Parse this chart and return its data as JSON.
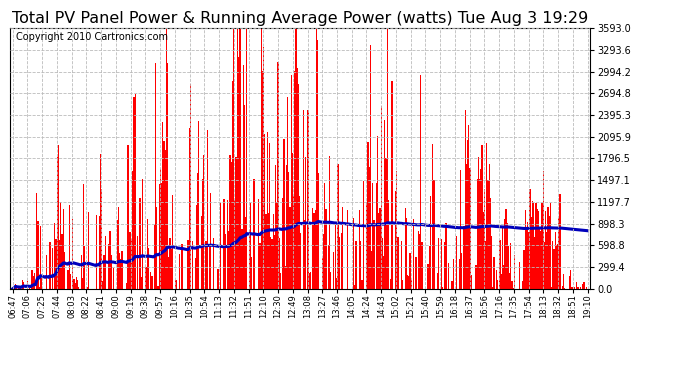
{
  "title": "Total PV Panel Power & Running Average Power (watts) Tue Aug 3 19:29",
  "copyright": "Copyright 2010 Cartronics.com",
  "yticks": [
    0.0,
    299.4,
    598.8,
    898.3,
    1197.7,
    1497.1,
    1796.5,
    2095.9,
    2395.3,
    2694.8,
    2994.2,
    3293.6,
    3593.0
  ],
  "ymax": 3593.0,
  "bar_color": "#FF0000",
  "avg_color": "#0000BB",
  "bg_color": "#FFFFFF",
  "grid_color": "#BBBBBB",
  "title_fontsize": 11.5,
  "copyright_fontsize": 7,
  "xtick_labels": [
    "06:47",
    "07:06",
    "07:25",
    "07:44",
    "08:03",
    "08:22",
    "08:41",
    "09:00",
    "09:19",
    "09:38",
    "09:57",
    "10:16",
    "10:35",
    "10:54",
    "11:13",
    "11:32",
    "11:51",
    "12:10",
    "12:30",
    "12:49",
    "13:08",
    "13:27",
    "13:46",
    "14:05",
    "14:24",
    "14:43",
    "15:02",
    "15:21",
    "15:40",
    "15:59",
    "16:18",
    "16:37",
    "16:56",
    "17:16",
    "17:35",
    "17:54",
    "18:13",
    "18:32",
    "18:51",
    "19:10"
  ],
  "n_bars": 480,
  "seed": 7
}
